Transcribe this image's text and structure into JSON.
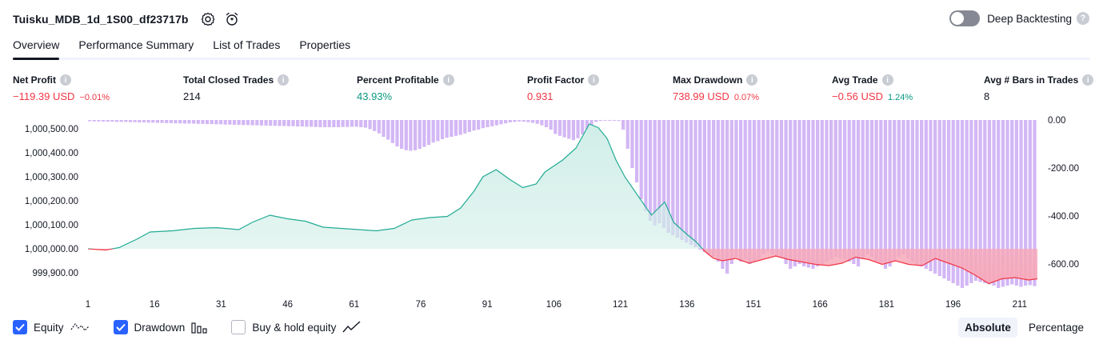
{
  "header": {
    "title": "Tuisku_MDB_1d_1S00_df23717b",
    "deep_backtesting_label": "Deep Backtesting",
    "deep_backtesting_enabled": false
  },
  "tabs": [
    {
      "label": "Overview",
      "active": true
    },
    {
      "label": "Performance Summary",
      "active": false
    },
    {
      "label": "List of Trades",
      "active": false
    },
    {
      "label": "Properties",
      "active": false
    }
  ],
  "metrics": {
    "net_profit": {
      "label": "Net Profit",
      "value": "−119.39 USD",
      "sub": "−0.01%"
    },
    "total_closed_trades": {
      "label": "Total Closed Trades",
      "value": "214"
    },
    "percent_profitable": {
      "label": "Percent Profitable",
      "value": "43.93%"
    },
    "profit_factor": {
      "label": "Profit Factor",
      "value": "0.931"
    },
    "max_drawdown": {
      "label": "Max Drawdown",
      "value": "738.99 USD",
      "sub": "0.07%"
    },
    "avg_trade": {
      "label": "Avg Trade",
      "value": "−0.56 USD",
      "sub": "1.24%"
    },
    "avg_bars": {
      "label": "Avg # Bars in Trades",
      "value": "8"
    }
  },
  "chart_data": {
    "type": "area",
    "x_ticks": [
      "1",
      "16",
      "31",
      "46",
      "61",
      "76",
      "91",
      "106",
      "121",
      "136",
      "151",
      "166",
      "181",
      "196",
      "211"
    ],
    "y_left_ticks": [
      "1,000,500.00",
      "1,000,400.00",
      "1,000,300.00",
      "1,000,200.00",
      "1,000,100.00",
      "1,000,000.00",
      "999,900.00"
    ],
    "y_right_ticks": [
      "0.00",
      "-200.00",
      "-400.00",
      "-600.00"
    ],
    "y_left_range": [
      999850,
      1000550
    ],
    "y_right_range": [
      -700,
      0
    ],
    "x_range": [
      1,
      215
    ],
    "baseline": 1000000,
    "series": [
      {
        "name": "Equity",
        "kind": "area",
        "points": [
          [
            1,
            1000000
          ],
          [
            5,
            999995
          ],
          [
            8,
            1000005
          ],
          [
            12,
            1000040
          ],
          [
            15,
            1000070
          ],
          [
            20,
            1000075
          ],
          [
            25,
            1000085
          ],
          [
            30,
            1000088
          ],
          [
            35,
            1000080
          ],
          [
            38,
            1000110
          ],
          [
            42,
            1000140
          ],
          [
            46,
            1000125
          ],
          [
            50,
            1000115
          ],
          [
            54,
            1000090
          ],
          [
            58,
            1000085
          ],
          [
            62,
            1000080
          ],
          [
            66,
            1000075
          ],
          [
            70,
            1000085
          ],
          [
            74,
            1000120
          ],
          [
            78,
            1000130
          ],
          [
            82,
            1000135
          ],
          [
            85,
            1000170
          ],
          [
            88,
            1000240
          ],
          [
            90,
            1000300
          ],
          [
            93,
            1000330
          ],
          [
            96,
            1000290
          ],
          [
            99,
            1000255
          ],
          [
            102,
            1000270
          ],
          [
            104,
            1000320
          ],
          [
            108,
            1000370
          ],
          [
            111,
            1000420
          ],
          [
            114,
            1000520
          ],
          [
            116,
            1000505
          ],
          [
            118,
            1000460
          ],
          [
            120,
            1000370
          ],
          [
            122,
            1000300
          ],
          [
            125,
            1000220
          ],
          [
            128,
            1000140
          ],
          [
            131,
            1000195
          ],
          [
            133,
            1000110
          ],
          [
            136,
            1000060
          ],
          [
            138,
            1000030
          ],
          [
            140,
            999990
          ],
          [
            142,
            999960
          ],
          [
            144,
            999950
          ],
          [
            147,
            999960
          ],
          [
            150,
            999940
          ],
          [
            153,
            999955
          ],
          [
            156,
            999970
          ],
          [
            159,
            999955
          ],
          [
            162,
            999945
          ],
          [
            165,
            999935
          ],
          [
            168,
            999930
          ],
          [
            171,
            999940
          ],
          [
            174,
            999965
          ],
          [
            177,
            999955
          ],
          [
            180,
            999935
          ],
          [
            183,
            999950
          ],
          [
            186,
            999935
          ],
          [
            189,
            999930
          ],
          [
            192,
            999960
          ],
          [
            195,
            999940
          ],
          [
            198,
            999920
          ],
          [
            201,
            999890
          ],
          [
            204,
            999855
          ],
          [
            207,
            999875
          ],
          [
            210,
            999880
          ],
          [
            213,
            999870
          ],
          [
            215,
            999875
          ]
        ]
      },
      {
        "name": "Drawdown",
        "kind": "bars",
        "values": [
          -5,
          -6,
          -6,
          -7,
          -7,
          -7,
          -8,
          -8,
          -8,
          -9,
          -9,
          -10,
          -10,
          -11,
          -11,
          -12,
          -12,
          -13,
          -13,
          -14,
          -14,
          -15,
          -15,
          -15,
          -16,
          -16,
          -17,
          -17,
          -18,
          -18,
          -19,
          -19,
          -20,
          -20,
          -21,
          -21,
          -22,
          -22,
          -23,
          -23,
          -24,
          -24,
          -25,
          -25,
          -26,
          -26,
          -27,
          -27,
          -28,
          -28,
          -29,
          -30,
          -30,
          -30,
          -30,
          -30,
          -29,
          -29,
          -28,
          -28,
          -30,
          -32,
          -38,
          -46,
          -56,
          -70,
          -82,
          -96,
          -110,
          -120,
          -126,
          -128,
          -126,
          -120,
          -112,
          -104,
          -94,
          -88,
          -80,
          -74,
          -70,
          -66,
          -62,
          -56,
          -50,
          -44,
          -40,
          -34,
          -30,
          -26,
          -22,
          -18,
          -14,
          -10,
          -8,
          -6,
          -7,
          -9,
          -12,
          -16,
          -22,
          -30,
          -40,
          -58,
          -66,
          -72,
          -78,
          -84,
          -76,
          -60,
          -40,
          -20,
          -8,
          -4,
          -2,
          -1,
          -1,
          -4,
          -40,
          -120,
          -200,
          -260,
          -330,
          -380,
          -420,
          -440,
          -430,
          -450,
          -470,
          -480,
          -490,
          -500,
          -510,
          -520,
          -530,
          -540,
          -550,
          -560,
          -570,
          -590,
          -620,
          -640,
          -600,
          -570,
          -590,
          -580,
          -600,
          -590,
          -580,
          -560,
          -550,
          -560,
          -570,
          -575,
          -600,
          -620,
          -610,
          -600,
          -610,
          -615,
          -620,
          -610,
          -600,
          -590,
          -580,
          -570,
          -575,
          -580,
          -590,
          -600,
          -610,
          -580,
          -560,
          -570,
          -590,
          -600,
          -620,
          -610,
          -590,
          -570,
          -560,
          -575,
          -590,
          -600,
          -610,
          -620,
          -630,
          -640,
          -650,
          -660,
          -670,
          -680,
          -690,
          -700,
          -690,
          -680,
          -670,
          -675,
          -680,
          -685,
          -690,
          -700,
          -695,
          -690,
          -685,
          -690,
          -695,
          -690,
          -688,
          -692
        ]
      }
    ]
  },
  "legend": {
    "equity_label": "Equity",
    "equity_checked": true,
    "drawdown_label": "Drawdown",
    "drawdown_checked": true,
    "buyhold_label": "Buy & hold equity",
    "buyhold_checked": false
  },
  "scale_toggle": {
    "absolute_label": "Absolute",
    "percentage_label": "Percentage",
    "selected": "Absolute"
  },
  "colors": {
    "equity_line": "#22ab94",
    "equity_fill": "#d1eee8",
    "loss_line": "#f23645",
    "loss_fill": "#f7a8b8",
    "drawdown_bar": "#d3b7f5",
    "accent": "#2962ff",
    "positive": "#089981",
    "negative": "#f23645"
  }
}
